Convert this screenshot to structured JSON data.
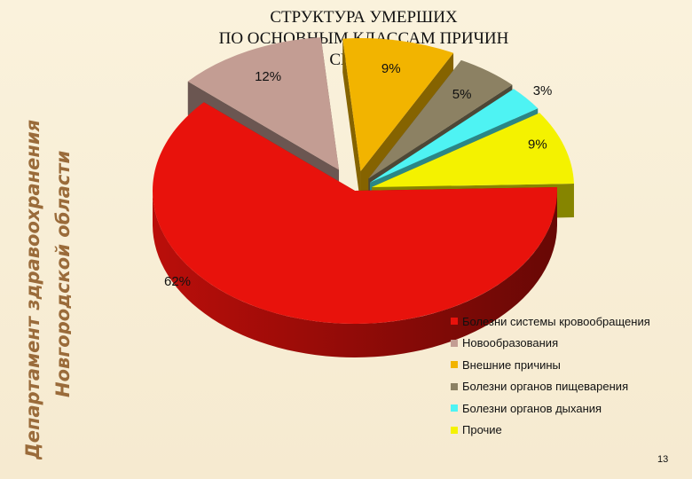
{
  "side_title": {
    "line1": "Департамент здравоохранения",
    "line2": "Новгородской области"
  },
  "title_lines": [
    "СТРУКТУРА УМЕРШИХ",
    "ПО ОСНОВНЫМ КЛАССАМ ПРИЧИН",
    "СМЕРТИ"
  ],
  "page_number": "13",
  "chart_data": {
    "type": "pie",
    "title": "СТРУКТУРА УМЕРШИХ ПО ОСНОВНЫМ КЛАССАМ ПРИЧИН СМЕРТИ",
    "legend_position": "bottom-right",
    "three_d": true,
    "exploded": true,
    "slices": [
      {
        "name": "Болезни системы кровообращения",
        "value": 62,
        "label": "62%",
        "color": "#e8120c"
      },
      {
        "name": "Новообразования",
        "value": 12,
        "label": "12%",
        "color": "#c39d93"
      },
      {
        "name": "Внешние причины",
        "value": 9,
        "label": "9%",
        "color": "#f2b400"
      },
      {
        "name": "Болезни органов пищеварения",
        "value": 5,
        "label": "5%",
        "color": "#8c8163"
      },
      {
        "name": "Болезни органов дыхания",
        "value": 3,
        "label": "3%",
        "color": "#4ef3f3"
      },
      {
        "name": "Прочие",
        "value": 9,
        "label": "9%",
        "color": "#f4f200"
      }
    ]
  }
}
